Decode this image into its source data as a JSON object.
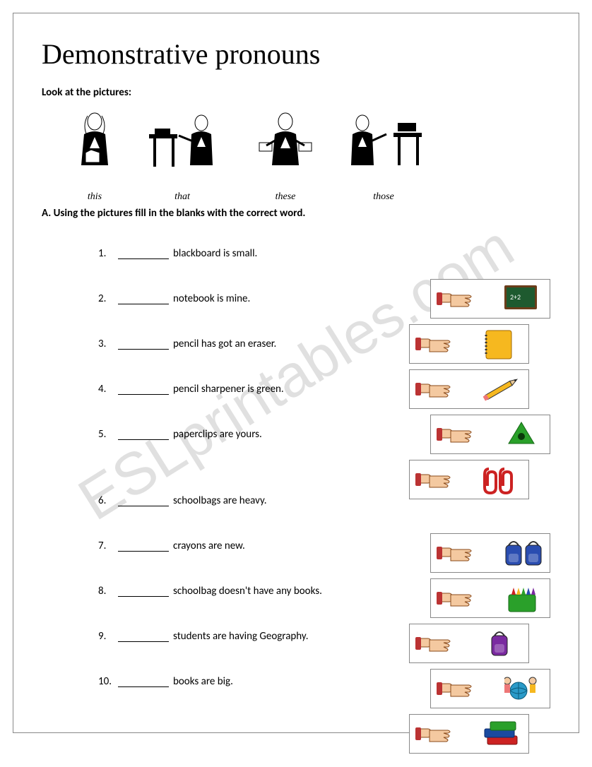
{
  "title": "Demonstrative pronouns",
  "instruction": "Look at the pictures:",
  "demo_labels": [
    "this",
    "that",
    "these",
    "those"
  ],
  "sectionA": "A. Using the pictures fill in the blanks with the correct word.",
  "watermark": "ESLprintables.com",
  "questions": [
    {
      "n": "1.",
      "text": "blackboard is small."
    },
    {
      "n": "2.",
      "text": "notebook is mine."
    },
    {
      "n": "3.",
      "text": "pencil has got an eraser."
    },
    {
      "n": "4.",
      "text": "pencil sharpener is green."
    },
    {
      "n": "5.",
      "text": "paperclips are yours."
    },
    {
      "n": "6.",
      "text": "schoolbags are heavy."
    },
    {
      "n": "7.",
      "text": "crayons are new."
    },
    {
      "n": "8.",
      "text": "schoolbag doesn't have any books."
    },
    {
      "n": "9.",
      "text": "students are having Geography."
    },
    {
      "n": "10.",
      "text": "books are big."
    }
  ],
  "icons": [
    {
      "obj": "blackboard",
      "far": true
    },
    {
      "obj": "notebook",
      "far": false
    },
    {
      "obj": "pencil",
      "far": false
    },
    {
      "obj": "sharpener",
      "far": true
    },
    {
      "obj": "paperclips",
      "far": false
    },
    {
      "obj": "schoolbags",
      "far": true
    },
    {
      "obj": "crayons",
      "far": true
    },
    {
      "obj": "schoolbag",
      "far": false
    },
    {
      "obj": "students",
      "far": true
    },
    {
      "obj": "books",
      "far": false
    }
  ],
  "colors": {
    "hand": "#f4c9a0",
    "hand_outline": "#8a4a1a",
    "blackboard": "#1e5a2f",
    "blackboard_frame": "#6a3d1a",
    "notebook": "#f6b81f",
    "notebook_spiral": "#333333",
    "pencil_body": "#f6b81f",
    "pencil_tip": "#222222",
    "sharpener": "#2aa02a",
    "paperclip": "#cc2222",
    "schoolbag1": "#2a4db0",
    "schoolbag2": "#7a2aa0",
    "crayon_box": "#2aa02a",
    "crayon_tips": [
      "#cc2222",
      "#f6b81f",
      "#2aa02a",
      "#2a4db0",
      "#7a2aa0"
    ],
    "globe": "#2a9ac8",
    "book1": "#cc2222",
    "book2": "#1a4aa0",
    "book3": "#2aa02a"
  }
}
